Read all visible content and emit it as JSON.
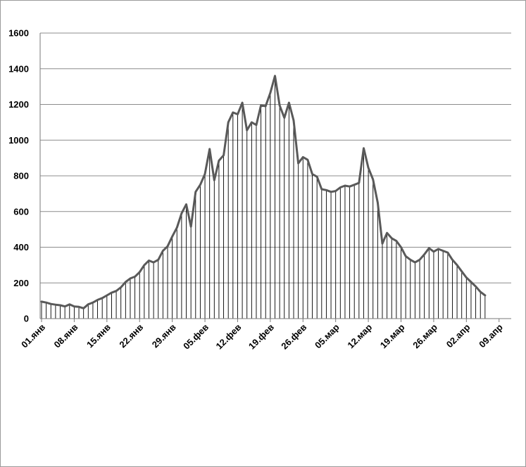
{
  "chart_data": {
    "type": "line",
    "title": "",
    "xlabel": "",
    "ylabel": "",
    "ylim": [
      0,
      1600
    ],
    "yticks": [
      "0",
      "200",
      "400",
      "600",
      "800",
      "1000",
      "1200",
      "1400",
      "1600"
    ],
    "grid": true,
    "legend": "none",
    "drop_lines": true,
    "xticks": [
      "01.янв",
      "08.янв",
      "15.янв",
      "22.янв",
      "29.янв",
      "05.фев",
      "12.фев",
      "19.фев",
      "26.фев",
      "05.мар",
      "12.мар",
      "19.мар",
      "26.мар",
      "02.апр",
      "09.апр"
    ],
    "x_start": "01.янв",
    "x_end": "09.апр",
    "series": [
      {
        "color": "#595959",
        "values": [
          95,
          90,
          82,
          78,
          75,
          68,
          80,
          68,
          66,
          58,
          80,
          90,
          105,
          115,
          130,
          145,
          155,
          175,
          205,
          225,
          235,
          260,
          300,
          325,
          315,
          330,
          380,
          405,
          460,
          510,
          590,
          640,
          515,
          710,
          750,
          810,
          950,
          775,
          885,
          915,
          1100,
          1155,
          1145,
          1210,
          1055,
          1100,
          1085,
          1195,
          1190,
          1265,
          1360,
          1195,
          1125,
          1210,
          1110,
          870,
          905,
          890,
          810,
          795,
          725,
          720,
          710,
          715,
          735,
          745,
          740,
          750,
          760,
          955,
          845,
          780,
          650,
          420,
          480,
          450,
          435,
          400,
          350,
          330,
          315,
          330,
          360,
          395,
          375,
          390,
          380,
          370,
          330,
          300,
          265,
          230,
          205,
          180,
          150,
          130
        ]
      }
    ]
  }
}
